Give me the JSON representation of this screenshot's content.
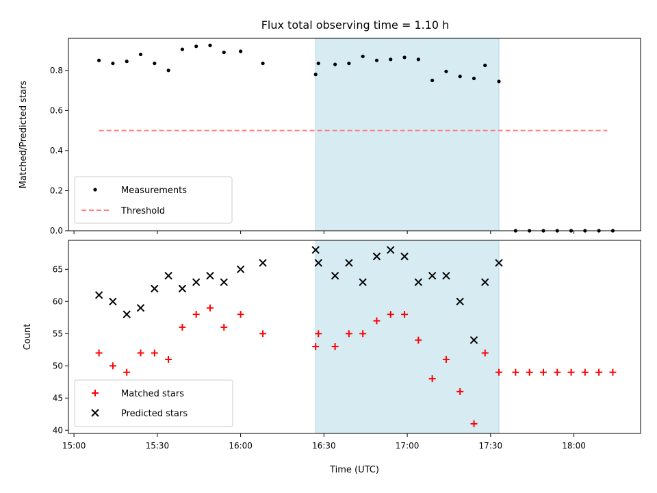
{
  "chart_data": {
    "type": "scatter",
    "title": "Flux total observing time = 1.10 h",
    "xlabel": "Time (UTC)",
    "x_tick_labels": [
      "15:00",
      "15:30",
      "16:00",
      "16:30",
      "17:00",
      "17:30",
      "18:00"
    ],
    "shaded_interval": [
      "16:27",
      "17:33"
    ],
    "shade_color": "#add8e6",
    "panels": [
      {
        "ylabel": "Matched/Predicted stars",
        "ylim": [
          0,
          0.96
        ],
        "y_ticks": [
          "0.0",
          "0.2",
          "0.4",
          "0.6",
          "0.8"
        ],
        "legend": [
          "Measurements",
          "Threshold"
        ],
        "legend_location": "lower-left",
        "series": [
          {
            "name": "Measurements",
            "marker": "dot",
            "color": "#000000",
            "x": [
              "15:09",
              "15:14",
              "15:19",
              "15:24",
              "15:29",
              "15:34",
              "15:39",
              "15:44",
              "15:49",
              "15:54",
              "16:00",
              "16:08",
              "16:27",
              "16:28",
              "16:34",
              "16:39",
              "16:44",
              "16:49",
              "16:54",
              "16:59",
              "17:04",
              "17:09",
              "17:14",
              "17:19",
              "17:24",
              "17:28",
              "17:33",
              "17:39",
              "17:44",
              "17:49",
              "17:54",
              "17:59",
              "18:04",
              "18:09",
              "18:14"
            ],
            "values": [
              0.85,
              0.835,
              0.845,
              0.88,
              0.835,
              0.8,
              0.905,
              0.92,
              0.925,
              0.89,
              0.895,
              0.835,
              0.78,
              0.835,
              0.83,
              0.835,
              0.87,
              0.85,
              0.855,
              0.865,
              0.855,
              0.75,
              0.795,
              0.77,
              0.76,
              0.825,
              0.745,
              0,
              0,
              0,
              0,
              0,
              0,
              0,
              0
            ]
          },
          {
            "name": "Threshold",
            "type": "line",
            "style": "dashed",
            "color": "#ff8080",
            "x": [
              "15:09",
              "18:12"
            ],
            "values": [
              0.5,
              0.5
            ]
          }
        ]
      },
      {
        "ylabel": "Count",
        "ylim": [
          39.5,
          69.5
        ],
        "y_ticks": [
          "40",
          "45",
          "50",
          "55",
          "60",
          "65"
        ],
        "legend": [
          "Matched stars",
          "Predicted stars"
        ],
        "legend_location": "lower-left",
        "series": [
          {
            "name": "Matched stars",
            "marker": "plus",
            "color": "#ff0000",
            "x": [
              "15:09",
              "15:14",
              "15:19",
              "15:24",
              "15:29",
              "15:34",
              "15:39",
              "15:44",
              "15:49",
              "15:54",
              "16:00",
              "16:08",
              "16:27",
              "16:28",
              "16:34",
              "16:39",
              "16:44",
              "16:49",
              "16:54",
              "16:59",
              "17:04",
              "17:09",
              "17:14",
              "17:19",
              "17:24",
              "17:28",
              "17:33",
              "17:39",
              "17:44",
              "17:49",
              "17:54",
              "17:59",
              "18:04",
              "18:09",
              "18:14"
            ],
            "values": [
              52,
              50,
              49,
              52,
              52,
              51,
              56,
              58,
              59,
              56,
              58,
              55,
              53,
              55,
              53,
              55,
              55,
              57,
              58,
              58,
              54,
              48,
              51,
              46,
              41,
              52,
              49,
              49,
              49,
              49,
              49,
              49,
              49,
              49,
              49
            ]
          },
          {
            "name": "Predicted stars",
            "marker": "x",
            "color": "#000000",
            "x": [
              "15:09",
              "15:14",
              "15:19",
              "15:24",
              "15:29",
              "15:34",
              "15:39",
              "15:44",
              "15:49",
              "15:54",
              "16:00",
              "16:08",
              "16:27",
              "16:28",
              "16:34",
              "16:39",
              "16:44",
              "16:49",
              "16:54",
              "16:59",
              "17:04",
              "17:09",
              "17:14",
              "17:19",
              "17:24",
              "17:28",
              "17:33"
            ],
            "values": [
              61,
              60,
              58,
              59,
              62,
              64,
              62,
              63,
              64,
              63,
              65,
              66,
              68,
              66,
              64,
              66,
              63,
              67,
              68,
              67,
              63,
              64,
              64,
              60,
              54,
              63,
              66
            ]
          }
        ]
      }
    ]
  }
}
